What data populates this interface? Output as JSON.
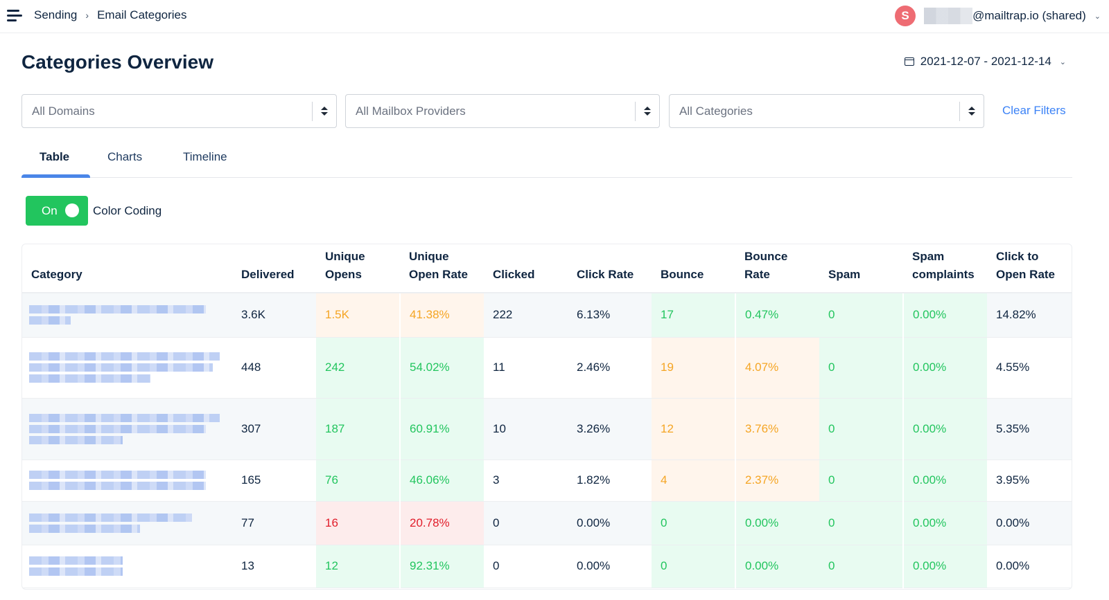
{
  "topbar": {
    "menu_icon": "hamburger-menu-icon",
    "breadcrumb": [
      {
        "label": "Sending"
      },
      {
        "label": "Email Categories"
      }
    ],
    "breadcrumb_separator": "›",
    "account": {
      "avatar_letter": "S",
      "avatar_color": "#ee6c73",
      "email_suffix": "@mailtrap.io (shared)",
      "chevron": "⌄"
    }
  },
  "page": {
    "title": "Categories Overview",
    "date_range": "2021-12-07 - 2021-12-14",
    "date_chevron": "⌄"
  },
  "filters": {
    "domains": "All Domains",
    "mailbox_providers": "All Mailbox Providers",
    "categories": "All Categories",
    "clear_label": "Clear Filters"
  },
  "tabs": [
    {
      "label": "Table",
      "active": true
    },
    {
      "label": "Charts",
      "active": false
    },
    {
      "label": "Timeline",
      "active": false
    }
  ],
  "color_coding": {
    "state_label": "On",
    "enabled": true,
    "label": "Color Coding"
  },
  "colors": {
    "accent_blue": "#4a86e8",
    "link_blue": "#3b82f6",
    "good_green": "#22c55e",
    "warn_orange": "#f5a524",
    "bad_red": "#e11d2a"
  },
  "table": {
    "columns": [
      "Category",
      "Delivered",
      "Unique Opens",
      "Unique Open Rate",
      "Clicked",
      "Click Rate",
      "Bounce",
      "Bounce Rate",
      "Spam",
      "Spam complaints",
      "Click to Open Rate"
    ],
    "column_lines": [
      [
        "Category"
      ],
      [
        "Delivered"
      ],
      [
        "Unique",
        "Opens"
      ],
      [
        "Unique",
        "Open Rate"
      ],
      [
        "Clicked"
      ],
      [
        "Click Rate"
      ],
      [
        "Bounce"
      ],
      [
        "Bounce",
        "Rate"
      ],
      [
        "Spam"
      ],
      [
        "Spam",
        "complaints"
      ],
      [
        "Click to",
        "Open Rate"
      ]
    ],
    "rows": [
      {
        "category": "[redacted]",
        "delivered": "3.6K",
        "unique_opens": "1.5K",
        "unique_open_rate": "41.38%",
        "clicked": "222",
        "click_rate": "6.13%",
        "bounce": "17",
        "bounce_rate": "0.47%",
        "spam": "0",
        "spam_complaints": "0.00%",
        "click_to_open_rate": "14.82%",
        "opens_status": "orange",
        "bounce_status": "green"
      },
      {
        "category": "[redacted]",
        "delivered": "448",
        "unique_opens": "242",
        "unique_open_rate": "54.02%",
        "clicked": "11",
        "click_rate": "2.46%",
        "bounce": "19",
        "bounce_rate": "4.07%",
        "spam": "0",
        "spam_complaints": "0.00%",
        "click_to_open_rate": "4.55%",
        "opens_status": "green",
        "bounce_status": "orange"
      },
      {
        "category": "[redacted]",
        "delivered": "307",
        "unique_opens": "187",
        "unique_open_rate": "60.91%",
        "clicked": "10",
        "click_rate": "3.26%",
        "bounce": "12",
        "bounce_rate": "3.76%",
        "spam": "0",
        "spam_complaints": "0.00%",
        "click_to_open_rate": "5.35%",
        "opens_status": "green",
        "bounce_status": "orange"
      },
      {
        "category": "[redacted]",
        "delivered": "165",
        "unique_opens": "76",
        "unique_open_rate": "46.06%",
        "clicked": "3",
        "click_rate": "1.82%",
        "bounce": "4",
        "bounce_rate": "2.37%",
        "spam": "0",
        "spam_complaints": "0.00%",
        "click_to_open_rate": "3.95%",
        "opens_status": "green",
        "bounce_status": "orange"
      },
      {
        "category": "[redacted]",
        "delivered": "77",
        "unique_opens": "16",
        "unique_open_rate": "20.78%",
        "clicked": "0",
        "click_rate": "0.00%",
        "bounce": "0",
        "bounce_rate": "0.00%",
        "spam": "0",
        "spam_complaints": "0.00%",
        "click_to_open_rate": "0.00%",
        "opens_status": "red",
        "bounce_status": "green"
      },
      {
        "category": "[redacted]",
        "delivered": "13",
        "unique_opens": "12",
        "unique_open_rate": "92.31%",
        "clicked": "0",
        "click_rate": "0.00%",
        "bounce": "0",
        "bounce_rate": "0.00%",
        "spam": "0",
        "spam_complaints": "0.00%",
        "click_to_open_rate": "0.00%",
        "opens_status": "green",
        "bounce_status": "green"
      }
    ]
  }
}
